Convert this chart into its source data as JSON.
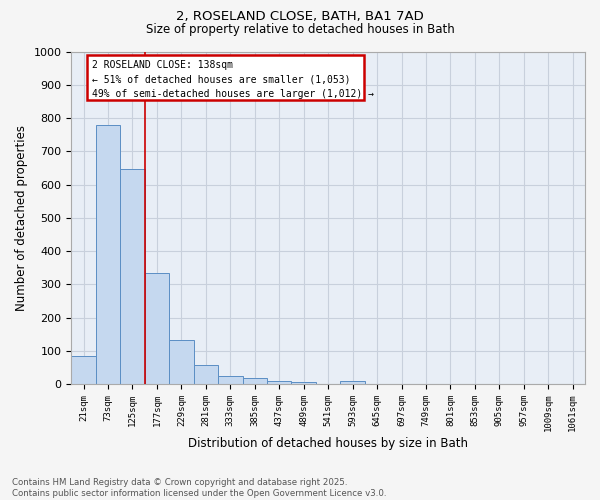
{
  "title_line1": "2, ROSELAND CLOSE, BATH, BA1 7AD",
  "title_line2": "Size of property relative to detached houses in Bath",
  "xlabel": "Distribution of detached houses by size in Bath",
  "ylabel": "Number of detached properties",
  "categories": [
    "21sqm",
    "73sqm",
    "125sqm",
    "177sqm",
    "229sqm",
    "281sqm",
    "333sqm",
    "385sqm",
    "437sqm",
    "489sqm",
    "541sqm",
    "593sqm",
    "645sqm",
    "697sqm",
    "749sqm",
    "801sqm",
    "853sqm",
    "905sqm",
    "957sqm",
    "1009sqm",
    "1061sqm"
  ],
  "values": [
    85,
    780,
    648,
    335,
    133,
    58,
    25,
    18,
    10,
    5,
    0,
    10,
    0,
    0,
    0,
    0,
    0,
    0,
    0,
    0,
    0
  ],
  "bar_color": "#c5d8ef",
  "bar_edge_color": "#5b8ec4",
  "vline_x": 2.5,
  "vline_color": "#cc0000",
  "annotation_text_line1": "2 ROSELAND CLOSE: 138sqm",
  "annotation_text_line2": "← 51% of detached houses are smaller (1,053)",
  "annotation_text_line3": "49% of semi-detached houses are larger (1,012) →",
  "annotation_box_color": "#cc0000",
  "ylim": [
    0,
    1000
  ],
  "yticks": [
    0,
    100,
    200,
    300,
    400,
    500,
    600,
    700,
    800,
    900,
    1000
  ],
  "grid_color": "#c8d0dc",
  "bg_color": "#e8eef6",
  "footnote": "Contains HM Land Registry data © Crown copyright and database right 2025.\nContains public sector information licensed under the Open Government Licence v3.0.",
  "fig_bg_color": "#f5f5f5"
}
